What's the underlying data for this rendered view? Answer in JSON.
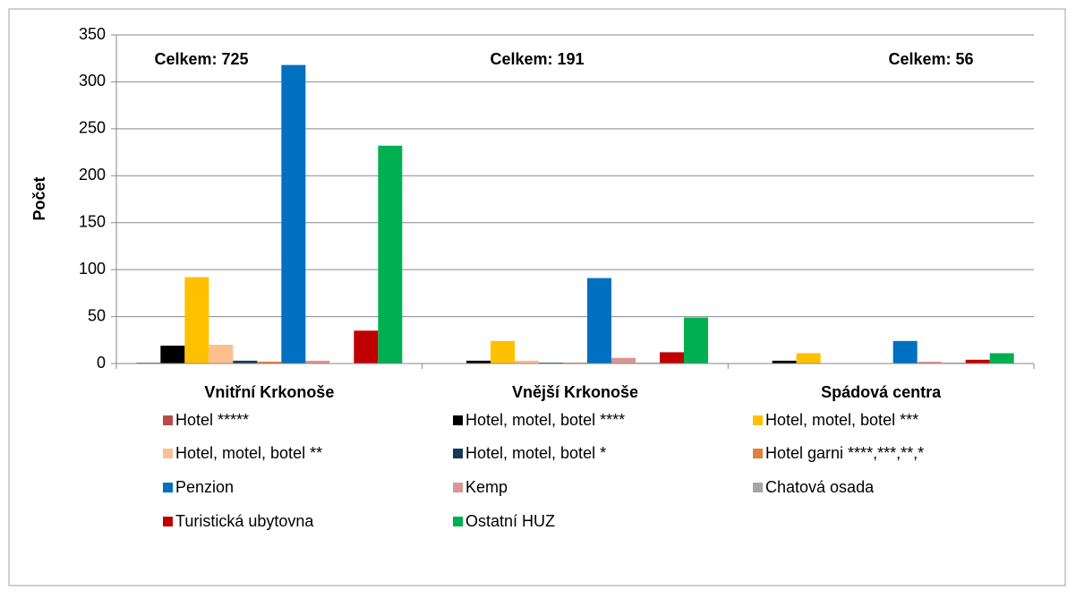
{
  "chart_data": {
    "type": "bar",
    "y_label": "Počet",
    "categories": [
      "Vnitřní Krkonoše",
      "Vnější Krkonoše",
      "Spádová centra"
    ],
    "annotations": [
      "Celkem: 725",
      "Celkem: 191",
      "Celkem: 56"
    ],
    "series": [
      {
        "name": "Hotel *****",
        "color": "#b94a48",
        "values": [
          1,
          0,
          0
        ]
      },
      {
        "name": "Hotel, motel, botel ****",
        "color": "#000000",
        "values": [
          19,
          3,
          3
        ]
      },
      {
        "name": "Hotel, motel, botel ***",
        "color": "#ffc000",
        "values": [
          92,
          24,
          11
        ]
      },
      {
        "name": "Hotel, motel, botel **",
        "color": "#fac090",
        "values": [
          20,
          3,
          0
        ]
      },
      {
        "name": "Hotel, motel, botel *",
        "color": "#17375e",
        "values": [
          3,
          1,
          0
        ]
      },
      {
        "name": "Hotel garni ****,***,**,*",
        "color": "#e0803c",
        "values": [
          2,
          1,
          0
        ]
      },
      {
        "name": "Penzion",
        "color": "#0070c0",
        "values": [
          318,
          91,
          24
        ]
      },
      {
        "name": "Kemp",
        "color": "#d99694",
        "values": [
          3,
          6,
          2
        ]
      },
      {
        "name": "Chatová osada",
        "color": "#a6a6a6",
        "values": [
          0,
          1,
          1
        ]
      },
      {
        "name": "Turistická ubytovna",
        "color": "#c00000",
        "values": [
          35,
          12,
          4
        ]
      },
      {
        "name": "Ostatní HUZ",
        "color": "#00b050",
        "values": [
          232,
          49,
          11
        ]
      }
    ],
    "ylim": [
      0,
      350
    ],
    "yticks": [
      0,
      50,
      100,
      150,
      200,
      250,
      300,
      350
    ],
    "grid": true
  }
}
